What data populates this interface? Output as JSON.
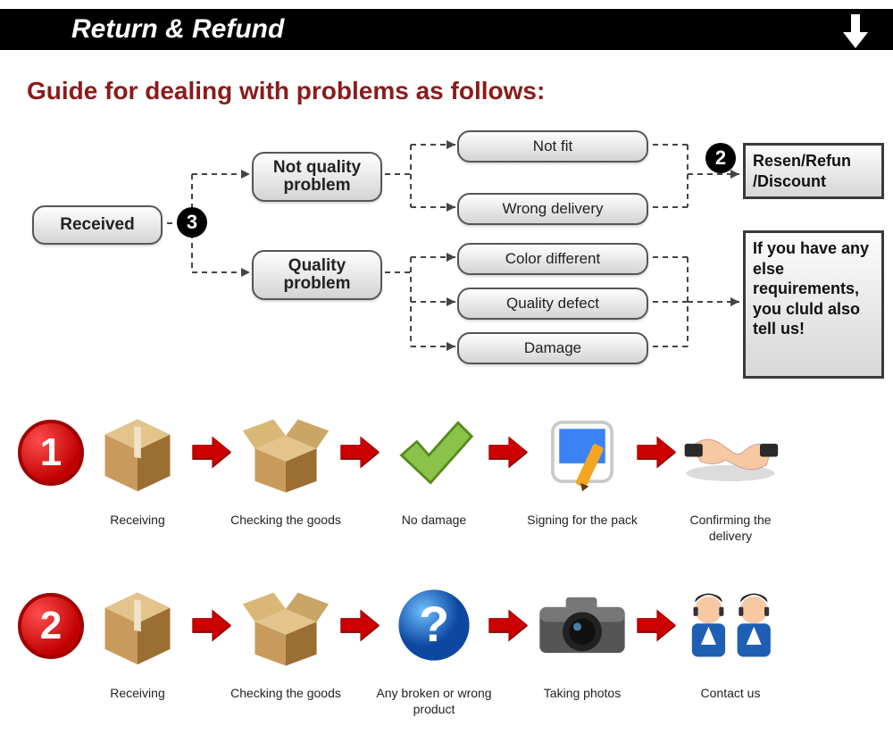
{
  "header": {
    "title": "Return & Refund"
  },
  "subtitle": "Guide for dealing with problems as follows:",
  "flow": {
    "received": "Received",
    "not_quality": "Not quality problem",
    "quality": "Quality problem",
    "leaves": {
      "not_fit": "Not fit",
      "wrong_delivery": "Wrong delivery",
      "color_diff": "Color different",
      "quality_defect": "Quality defect",
      "damage": "Damage"
    },
    "badge2": "2",
    "badge3": "3",
    "right_top": "Resen/Refun\n/Discount",
    "right_bottom": "If you have any else requirements, you cluld also tell us!",
    "style": {
      "dash_color": "#444444",
      "dash_width": 2,
      "dash_pattern": "6,5",
      "node_border": "#565656",
      "node_bg_top": "#fefefe",
      "node_bg_bot": "#d4d4d4",
      "rbox_border": "#3a3a3a"
    }
  },
  "rows": [
    {
      "num": "1",
      "steps": [
        {
          "icon": "box-closed",
          "label": "Receiving"
        },
        {
          "icon": "box-open",
          "label": "Checking the goods"
        },
        {
          "icon": "check",
          "label": "No damage"
        },
        {
          "icon": "sign",
          "label": "Signing for the pack"
        },
        {
          "icon": "handshake",
          "label": "Confirming the delivery"
        }
      ]
    },
    {
      "num": "2",
      "steps": [
        {
          "icon": "box-closed",
          "label": "Receiving"
        },
        {
          "icon": "box-open",
          "label": "Checking the goods"
        },
        {
          "icon": "question",
          "label": "Any broken or wrong product"
        },
        {
          "icon": "camera",
          "label": "Taking photos"
        },
        {
          "icon": "support",
          "label": "Contact us"
        }
      ]
    }
  ],
  "colors": {
    "header_bg": "#000000",
    "header_fg": "#ffffff",
    "subtitle": "#8b1b1b",
    "arrow_red": "#cc0000",
    "arrow_red_dark": "#990000",
    "badge_red": "#c00000",
    "badge_red_light": "#ff4d4d",
    "box_cardboard": "#c89a5b",
    "box_cardboard_dark": "#9b6e33",
    "check_green": "#8bc34a",
    "check_green_dark": "#5a8a1f",
    "question_blue": "#1e88e5",
    "question_blue_dark": "#0d47a1",
    "camera_body": "#555555",
    "camera_body_dark": "#222222",
    "support_blue": "#1e5fb3",
    "skin": "#f7c9a3"
  }
}
